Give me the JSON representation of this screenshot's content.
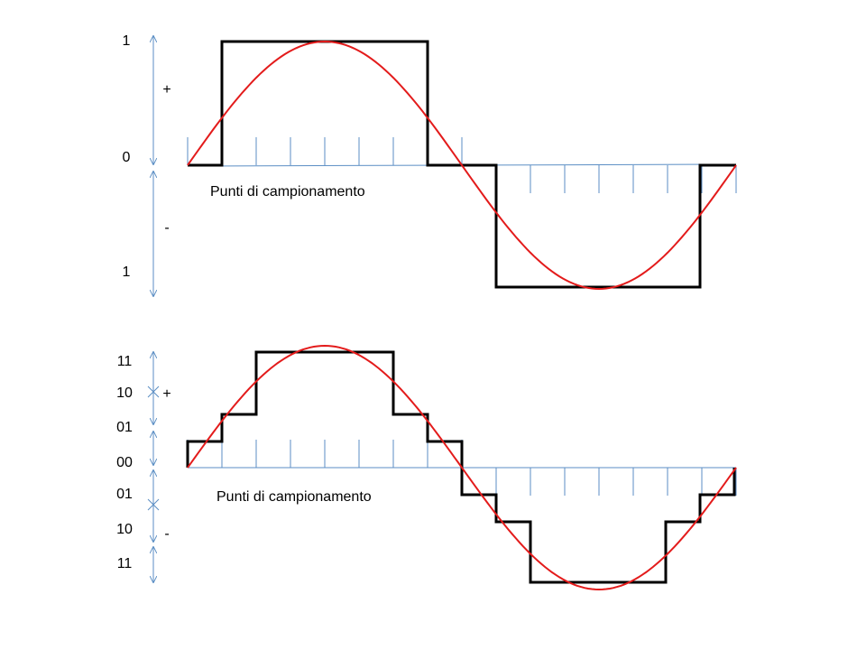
{
  "panels": [
    {
      "levels": [
        "1",
        "0",
        "1"
      ],
      "signs": [
        "+",
        "-"
      ],
      "caption": "Punti di campionamento"
    },
    {
      "levels": [
        "11",
        "10",
        "01",
        "00",
        "01",
        "10",
        "11"
      ],
      "signs": [
        "+",
        "-"
      ],
      "caption": "Punti di campionamento"
    }
  ]
}
